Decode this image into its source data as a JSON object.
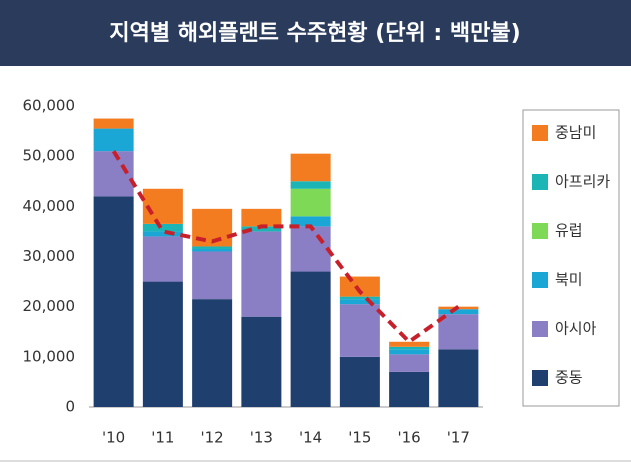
{
  "chart_data": {
    "type": "stacked_bar",
    "title": "지역별 해외플랜트 수주현황 (단위 : 백만불)",
    "categories": [
      "'10",
      "'11",
      "'12",
      "'13",
      "'14",
      "'15",
      "'16",
      "'17"
    ],
    "series": [
      {
        "name": "중동",
        "color": "#1f3f6e",
        "values": [
          42000,
          25000,
          21500,
          18000,
          27000,
          10000,
          7000,
          11500
        ]
      },
      {
        "name": "아시아",
        "color": "#8a7fc4",
        "values": [
          9000,
          9000,
          9500,
          17000,
          9000,
          10500,
          3500,
          7000
        ]
      },
      {
        "name": "북미",
        "color": "#1aa7d6",
        "values": [
          4500,
          1000,
          500,
          0,
          2000,
          1000,
          1000,
          1000
        ]
      },
      {
        "name": "유럽",
        "color": "#7ed957",
        "values": [
          0,
          0,
          0,
          0,
          5500,
          0,
          0,
          0
        ]
      },
      {
        "name": "아프리카",
        "color": "#1bb5b5",
        "values": [
          0,
          1500,
          500,
          1000,
          1500,
          500,
          500,
          0
        ]
      },
      {
        "name": "중남미",
        "color": "#f47c20",
        "values": [
          2000,
          7000,
          7500,
          3500,
          5500,
          4000,
          1000,
          500
        ]
      }
    ],
    "line": {
      "color": "#c8202a",
      "values": [
        51000,
        35000,
        33000,
        36000,
        36000,
        23000,
        13000,
        20000
      ]
    },
    "ylim": [
      0,
      60000
    ],
    "yticks": [
      0,
      {
        "value": 10000,
        "label": "10,000"
      },
      {
        "value": 20000,
        "label": "20,000"
      },
      {
        "value": 30000,
        "label": "30,000"
      },
      {
        "value": 40000,
        "label": "40,000"
      },
      {
        "value": 50000,
        "label": "50,000"
      },
      {
        "value": 60000,
        "label": "60,000"
      }
    ],
    "legend": "right"
  }
}
